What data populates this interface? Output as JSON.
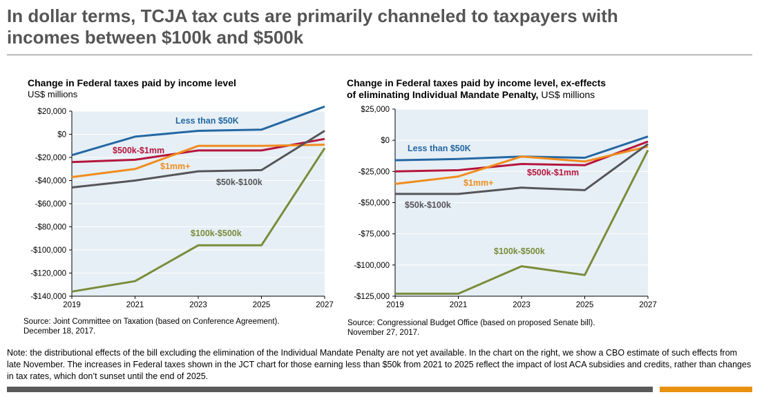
{
  "header": {
    "title_line1": "In dollar terms, TCJA tax cuts are primarily channeled to taxpayers with",
    "title_line2": "incomes between $100k and $500k"
  },
  "left_chart": {
    "title": "Change in Federal taxes paid by income level",
    "subtitle": "US$ millions",
    "source_line1": "Source: Joint Committee on Taxation (based on Conference Agreement).",
    "source_line2": "December 18, 2017."
  },
  "right_chart": {
    "title_line1": "Change in Federal taxes paid by income level, ex-effects",
    "title_line2": "of eliminating Individual Mandate Penalty,",
    "title_unit": " US$ millions",
    "source_line1": "Source: Congressional Budget Office (based on proposed Senate bill).",
    "source_line2": "November 27, 2017."
  },
  "note": "Note: the distributional effects of the bill excluding the elimination of the Individual Mandate Penalty are not yet available.  In the chart on the right, we show a CBO estimate of such effects from late November.  The increases in Federal taxes shown in the JCT chart for those earning less than $50k from 2021 to 2025 reflect the impact of lost ACA subsidies and credits, rather than changes in tax rates, which don’t sunset until the end of 2025.",
  "colors": {
    "plot_bg": "#e6eff5",
    "less50": "#2467a3",
    "500k1mm": "#b5153c",
    "1mm": "#f08c1e",
    "50k100k": "#555559",
    "100k500k": "#7a8c3a",
    "footer_gray": "#5a5a5a",
    "footer_orange": "#e8920f"
  },
  "chart_data": [
    {
      "type": "line",
      "title": "Change in Federal taxes paid by income level",
      "ylabel": "US$ millions",
      "x": [
        2019,
        2021,
        2023,
        2025,
        2027
      ],
      "ylim": [
        -140000,
        20000
      ],
      "yticks": [
        20000,
        0,
        -20000,
        -40000,
        -60000,
        -80000,
        -100000,
        -120000,
        -140000
      ],
      "ytick_labels": [
        "$20,000",
        "$0",
        "-$20,000",
        "-$40,000",
        "-$60,000",
        "-$80,000",
        "-$100,000",
        "-$120,000",
        "-$140,000"
      ],
      "grid": true,
      "series": [
        {
          "name": "Less than $50K",
          "color": "#2467a3",
          "values": [
            -18000,
            -2000,
            3000,
            4000,
            24000
          ]
        },
        {
          "name": "$500k-$1mm",
          "color": "#b5153c",
          "values": [
            -24000,
            -22000,
            -14000,
            -14000,
            -4000
          ]
        },
        {
          "name": "$1mm+",
          "color": "#f08c1e",
          "values": [
            -37000,
            -30000,
            -10000,
            -10000,
            -9000
          ]
        },
        {
          "name": "$50k-$100k",
          "color": "#555559",
          "values": [
            -46000,
            -40000,
            -32000,
            -31000,
            3000
          ]
        },
        {
          "name": "$100k-$500k",
          "color": "#7a8c3a",
          "values": [
            -136000,
            -127000,
            -96000,
            -96000,
            -12000
          ]
        }
      ]
    },
    {
      "type": "line",
      "title": "Change in Federal taxes paid by income level, ex-effects of eliminating Individual Mandate Penalty",
      "ylabel": "US$ millions",
      "x": [
        2019,
        2021,
        2023,
        2025,
        2027
      ],
      "ylim": [
        -125000,
        25000
      ],
      "yticks": [
        25000,
        0,
        -25000,
        -50000,
        -75000,
        -100000,
        -125000
      ],
      "ytick_labels": [
        "$25,000",
        "$0",
        "-$25,000",
        "-$50,000",
        "-$75,000",
        "-$100,000",
        "-$125,000"
      ],
      "grid": true,
      "series": [
        {
          "name": "Less than $50K",
          "color": "#2467a3",
          "values": [
            -16000,
            -15000,
            -13000,
            -14000,
            3000
          ]
        },
        {
          "name": "$500k-$1mm",
          "color": "#b5153c",
          "values": [
            -25000,
            -24000,
            -19000,
            -20000,
            -1000
          ]
        },
        {
          "name": "$1mm+",
          "color": "#f08c1e",
          "values": [
            -35000,
            -29000,
            -13000,
            -17000,
            -5000
          ]
        },
        {
          "name": "$50k-$100k",
          "color": "#555559",
          "values": [
            -43000,
            -43000,
            -38000,
            -40000,
            -3000
          ]
        },
        {
          "name": "$100k-$500k",
          "color": "#7a8c3a",
          "values": [
            -123000,
            -123000,
            -101000,
            -108000,
            -8000
          ]
        }
      ]
    }
  ]
}
